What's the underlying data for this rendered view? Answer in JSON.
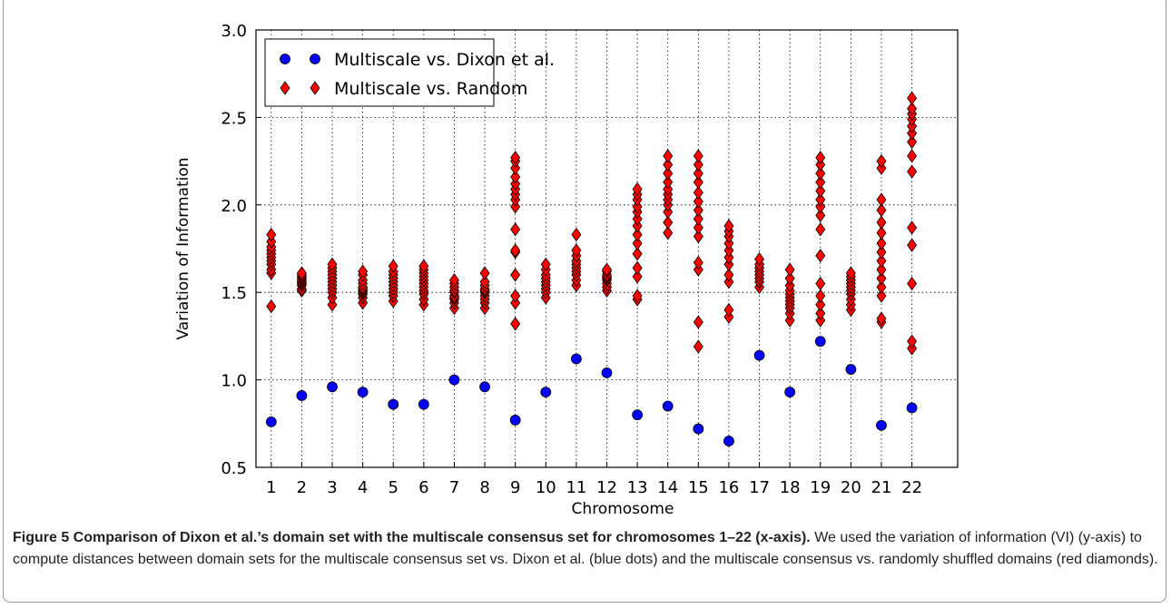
{
  "chart_data": {
    "type": "scatter",
    "xlabel": "Chromosome",
    "ylabel": "Variation of Information",
    "x": [
      1,
      2,
      3,
      4,
      5,
      6,
      7,
      8,
      9,
      10,
      11,
      12,
      13,
      14,
      15,
      16,
      17,
      18,
      19,
      20,
      21,
      22
    ],
    "xlim": [
      0.5,
      23.5
    ],
    "xticks": [
      1,
      2,
      3,
      4,
      5,
      6,
      7,
      8,
      9,
      10,
      11,
      12,
      13,
      14,
      15,
      16,
      17,
      18,
      19,
      20,
      21,
      22
    ],
    "ylim": [
      0.5,
      3
    ],
    "yticks": [
      0.5,
      {
        "value": 1,
        "label": "1.0"
      },
      1.5,
      {
        "value": 2,
        "label": "2.0"
      },
      2.5,
      {
        "value": 3,
        "label": "3.0"
      }
    ],
    "grid": true,
    "legend": "upper left",
    "series": [
      {
        "name": "Multiscale vs. Dixon et al.",
        "color": "#0000ff",
        "marker": "circle",
        "values": [
          0.76,
          0.91,
          0.96,
          0.93,
          0.86,
          0.86,
          1.0,
          0.96,
          0.77,
          0.93,
          1.12,
          1.04,
          0.8,
          0.85,
          0.72,
          0.65,
          1.14,
          0.93,
          1.22,
          1.06,
          0.74,
          0.84
        ]
      },
      {
        "name": "Multiscale vs. Random",
        "color": "#ff0000",
        "marker": "diamond",
        "values": [
          [
            1.42,
            1.61,
            1.63,
            1.66,
            1.68,
            1.7,
            1.72,
            1.74,
            1.76,
            1.79,
            1.83
          ],
          [
            1.51,
            1.52,
            1.54,
            1.55,
            1.56,
            1.57,
            1.58,
            1.59,
            1.6,
            1.61
          ],
          [
            1.43,
            1.47,
            1.5,
            1.52,
            1.54,
            1.56,
            1.58,
            1.6,
            1.62,
            1.64,
            1.66
          ],
          [
            1.44,
            1.47,
            1.49,
            1.5,
            1.51,
            1.52,
            1.53,
            1.55,
            1.57,
            1.6,
            1.62
          ],
          [
            1.45,
            1.48,
            1.5,
            1.52,
            1.54,
            1.56,
            1.58,
            1.6,
            1.62,
            1.65
          ],
          [
            1.43,
            1.46,
            1.49,
            1.51,
            1.53,
            1.55,
            1.57,
            1.59,
            1.61,
            1.63,
            1.65
          ],
          [
            1.41,
            1.44,
            1.46,
            1.47,
            1.48,
            1.5,
            1.51,
            1.53,
            1.55,
            1.57
          ],
          [
            1.41,
            1.44,
            1.46,
            1.48,
            1.5,
            1.51,
            1.52,
            1.54,
            1.56,
            1.61
          ],
          [
            1.32,
            1.44,
            1.48,
            1.6,
            1.73,
            1.74,
            1.86,
            1.99,
            2.03,
            2.06,
            2.09,
            2.12,
            2.16,
            2.21,
            2.25,
            2.27
          ],
          [
            1.47,
            1.5,
            1.52,
            1.54,
            1.56,
            1.58,
            1.6,
            1.63,
            1.66
          ],
          [
            1.54,
            1.57,
            1.6,
            1.62,
            1.64,
            1.66,
            1.68,
            1.71,
            1.74,
            1.83
          ],
          [
            1.51,
            1.53,
            1.55,
            1.57,
            1.58,
            1.59,
            1.6,
            1.62,
            1.63
          ],
          [
            1.46,
            1.48,
            1.59,
            1.64,
            1.72,
            1.78,
            1.83,
            1.88,
            1.92,
            1.96,
            1.99,
            2.03,
            2.06,
            2.09
          ],
          [
            1.84,
            1.9,
            1.96,
            2.0,
            2.03,
            2.06,
            2.09,
            2.13,
            2.18,
            2.23,
            2.28
          ],
          [
            1.19,
            1.33,
            1.63,
            1.67,
            1.82,
            1.87,
            1.92,
            1.97,
            2.02,
            2.07,
            2.13,
            2.18,
            2.23,
            2.28
          ],
          [
            1.36,
            1.4,
            1.56,
            1.6,
            1.66,
            1.7,
            1.74,
            1.78,
            1.82,
            1.85,
            1.88
          ],
          [
            1.53,
            1.56,
            1.58,
            1.6,
            1.62,
            1.64,
            1.66,
            1.69
          ],
          [
            1.34,
            1.38,
            1.41,
            1.43,
            1.45,
            1.47,
            1.49,
            1.51,
            1.54,
            1.58,
            1.63
          ],
          [
            1.34,
            1.38,
            1.43,
            1.48,
            1.55,
            1.71,
            1.86,
            1.94,
            1.99,
            2.03,
            2.08,
            2.13,
            2.18,
            2.23,
            2.27
          ],
          [
            1.4,
            1.43,
            1.46,
            1.49,
            1.51,
            1.53,
            1.55,
            1.57,
            1.59,
            1.61
          ],
          [
            1.33,
            1.35,
            1.48,
            1.53,
            1.58,
            1.63,
            1.68,
            1.73,
            1.78,
            1.84,
            1.9,
            1.97,
            2.03,
            2.21,
            2.25
          ],
          [
            1.18,
            1.22,
            1.55,
            1.77,
            1.87,
            2.19,
            2.28,
            2.36,
            2.41,
            2.45,
            2.49,
            2.52,
            2.55,
            2.61
          ]
        ]
      }
    ],
    "caption_title": "Figure 5 Comparison of Dixon et al.’s domain set with the multiscale consensus set for chromosomes 1–22 (x-axis).",
    "caption_text": "We used the variation of information (VI) (y-axis) to compute distances between domain sets for the multiscale consensus set vs. Dixon et al. (blue dots) and the multiscale consensus vs. randomly shuffled domains (red diamonds)."
  }
}
